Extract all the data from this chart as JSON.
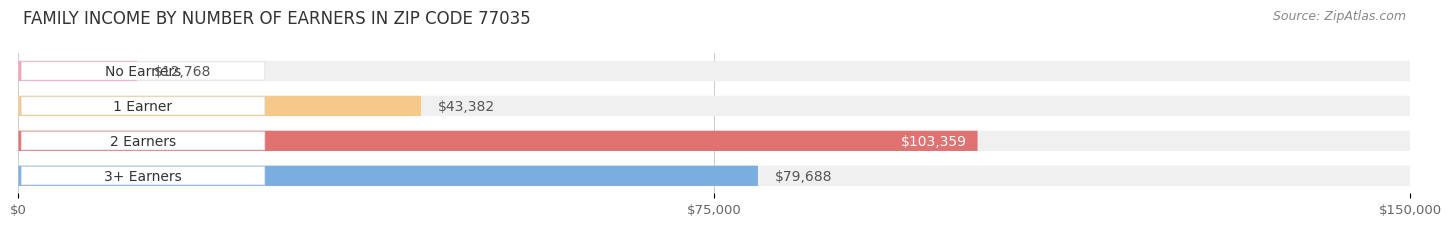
{
  "title": "FAMILY INCOME BY NUMBER OF EARNERS IN ZIP CODE 77035",
  "source": "Source: ZipAtlas.com",
  "categories": [
    "No Earners",
    "1 Earner",
    "2 Earners",
    "3+ Earners"
  ],
  "values": [
    12768,
    43382,
    103359,
    79688
  ],
  "bar_colors": [
    "#f5a0b5",
    "#f5c98a",
    "#e07272",
    "#7aade0"
  ],
  "xlim": [
    0,
    150000
  ],
  "xticklabels": [
    "$0",
    "$75,000",
    "$150,000"
  ],
  "value_labels": [
    "$12,768",
    "$43,382",
    "$103,359",
    "$79,688"
  ],
  "background_color": "#ffffff",
  "bar_background": "#f0f0f0",
  "title_fontsize": 12,
  "source_fontsize": 9,
  "label_fontsize": 10,
  "value_fontsize": 10,
  "tick_fontsize": 9.5
}
